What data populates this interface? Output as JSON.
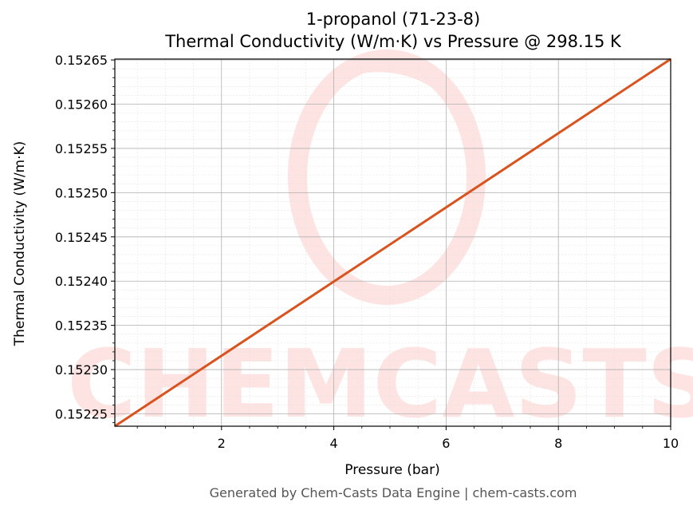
{
  "chart_data": {
    "type": "line",
    "title": "1-propanol (71-23-8)",
    "subtitle": "Thermal Conductivity (W/m·K) vs Pressure @ 298.15 K",
    "xlabel": "Pressure (bar)",
    "ylabel": "Thermal Conductivity (W/m·K)",
    "xlim": [
      0.1,
      10
    ],
    "ylim": [
      0.152236,
      0.152651
    ],
    "xticks": [
      2,
      4,
      6,
      8,
      10
    ],
    "yticks": [
      "0.15225",
      "0.15230",
      "0.15235",
      "0.15240",
      "0.15245",
      "0.15250",
      "0.15255",
      "0.15260",
      "0.15265"
    ],
    "grid": true,
    "series": [
      {
        "x": [
          0.1,
          10
        ],
        "y": [
          0.152236,
          0.152651
        ]
      }
    ],
    "colors": {
      "line": "#d9531e",
      "grid_major": "#b0b0b0",
      "grid_minor": "#e4e4e4",
      "watermark": "#fde3e1"
    }
  },
  "watermark": {
    "text": "CHEMCASTS"
  },
  "footer": "Generated by Chem-Casts Data Engine | chem-casts.com"
}
